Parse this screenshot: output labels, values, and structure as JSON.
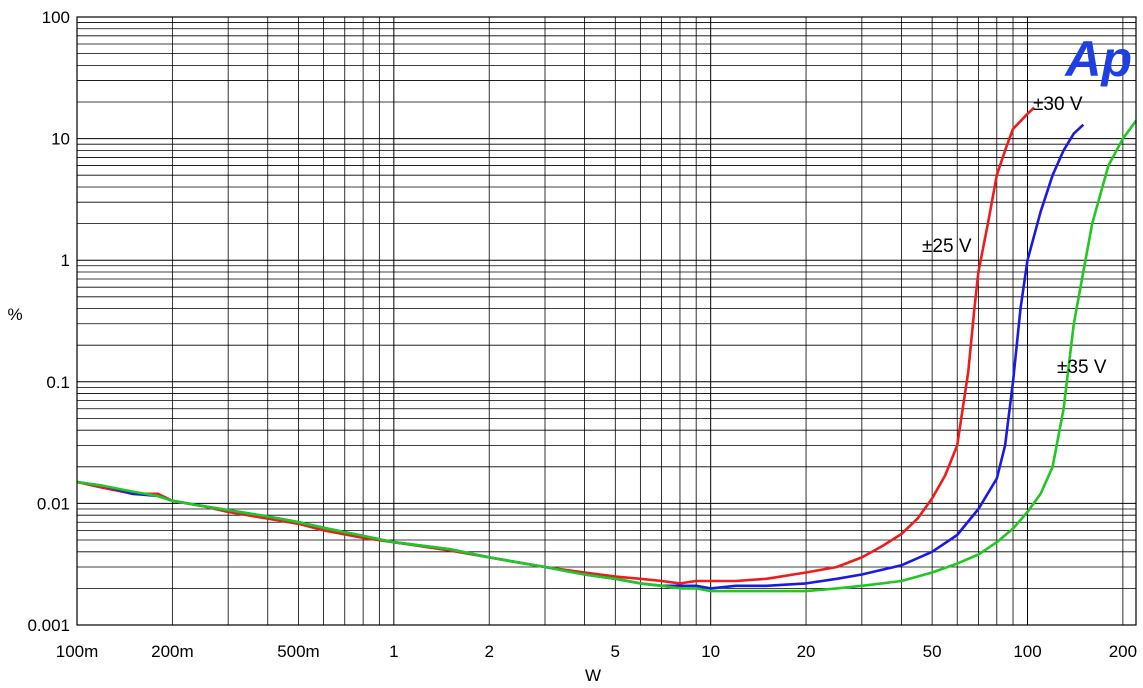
{
  "chart_data": {
    "type": "line",
    "xlabel": "W",
    "ylabel": "%",
    "x_scale": "log",
    "y_scale": "log",
    "xlim": [
      0.1,
      220
    ],
    "ylim": [
      0.001,
      100
    ],
    "grid": true,
    "x_ticks": [
      {
        "value": 0.1,
        "label": "100m"
      },
      {
        "value": 0.2,
        "label": "200m"
      },
      {
        "value": 0.5,
        "label": "500m"
      },
      {
        "value": 1,
        "label": "1"
      },
      {
        "value": 2,
        "label": "2"
      },
      {
        "value": 5,
        "label": "5"
      },
      {
        "value": 10,
        "label": "10"
      },
      {
        "value": 20,
        "label": "20"
      },
      {
        "value": 50,
        "label": "50"
      },
      {
        "value": 100,
        "label": "100"
      },
      {
        "value": 200,
        "label": "200"
      }
    ],
    "y_ticks": [
      {
        "value": 0.001,
        "label": "0.001"
      },
      {
        "value": 0.01,
        "label": "0.01"
      },
      {
        "value": 0.1,
        "label": "0.1"
      },
      {
        "value": 1,
        "label": "1"
      },
      {
        "value": 10,
        "label": "10"
      },
      {
        "value": 100,
        "label": "100"
      }
    ],
    "logo_text": "Ap",
    "series": [
      {
        "name": "±25 V",
        "color": "#ee1c1c",
        "label_at": [
          0.75,
          1.05
        ],
        "points": [
          [
            0.1,
            0.015
          ],
          [
            0.12,
            0.0135
          ],
          [
            0.15,
            0.012
          ],
          [
            0.18,
            0.012
          ],
          [
            0.2,
            0.0105
          ],
          [
            0.25,
            0.0095
          ],
          [
            0.3,
            0.0085
          ],
          [
            0.4,
            0.0075
          ],
          [
            0.5,
            0.0068
          ],
          [
            0.6,
            0.006
          ],
          [
            0.8,
            0.0052
          ],
          [
            1,
            0.0048
          ],
          [
            1.5,
            0.0041
          ],
          [
            2,
            0.0036
          ],
          [
            3,
            0.003
          ],
          [
            4,
            0.0027
          ],
          [
            5,
            0.0025
          ],
          [
            6,
            0.0024
          ],
          [
            7,
            0.0023
          ],
          [
            8,
            0.0022
          ],
          [
            9,
            0.0023
          ],
          [
            10,
            0.0023
          ],
          [
            12,
            0.0023
          ],
          [
            15,
            0.0024
          ],
          [
            20,
            0.0027
          ],
          [
            25,
            0.003
          ],
          [
            30,
            0.0036
          ],
          [
            35,
            0.0045
          ],
          [
            40,
            0.0056
          ],
          [
            45,
            0.0075
          ],
          [
            50,
            0.011
          ],
          [
            55,
            0.017
          ],
          [
            60,
            0.03
          ],
          [
            65,
            0.12
          ],
          [
            68,
            0.4
          ],
          [
            70,
            0.8
          ],
          [
            75,
            2
          ],
          [
            80,
            5
          ],
          [
            85,
            8
          ],
          [
            90,
            12
          ],
          [
            100,
            16
          ],
          [
            105,
            18
          ]
        ]
      },
      {
        "name": "±30 V",
        "color": "#1a1ae6",
        "label_at": [
          1.0,
          1.08
        ],
        "points": [
          [
            0.1,
            0.015
          ],
          [
            0.12,
            0.014
          ],
          [
            0.15,
            0.012
          ],
          [
            0.18,
            0.0115
          ],
          [
            0.2,
            0.0105
          ],
          [
            0.25,
            0.0095
          ],
          [
            0.3,
            0.0088
          ],
          [
            0.4,
            0.0078
          ],
          [
            0.5,
            0.007
          ],
          [
            0.6,
            0.0063
          ],
          [
            0.8,
            0.0054
          ],
          [
            1,
            0.0048
          ],
          [
            1.5,
            0.0042
          ],
          [
            2,
            0.0036
          ],
          [
            3,
            0.003
          ],
          [
            4,
            0.0026
          ],
          [
            5,
            0.0024
          ],
          [
            6,
            0.0022
          ],
          [
            7,
            0.0021
          ],
          [
            8,
            0.0021
          ],
          [
            9,
            0.0021
          ],
          [
            10,
            0.002
          ],
          [
            12,
            0.0021
          ],
          [
            15,
            0.0021
          ],
          [
            20,
            0.0022
          ],
          [
            25,
            0.0024
          ],
          [
            30,
            0.0026
          ],
          [
            40,
            0.0031
          ],
          [
            50,
            0.004
          ],
          [
            60,
            0.0055
          ],
          [
            70,
            0.009
          ],
          [
            80,
            0.016
          ],
          [
            85,
            0.03
          ],
          [
            90,
            0.1
          ],
          [
            95,
            0.4
          ],
          [
            100,
            1
          ],
          [
            110,
            2.5
          ],
          [
            120,
            5
          ],
          [
            130,
            8
          ],
          [
            140,
            11
          ],
          [
            150,
            13
          ]
        ]
      },
      {
        "name": "±35 V",
        "color": "#22c822",
        "label_at": [
          1.0,
          0.95
        ],
        "points": [
          [
            0.1,
            0.015
          ],
          [
            0.12,
            0.014
          ],
          [
            0.15,
            0.0125
          ],
          [
            0.18,
            0.0115
          ],
          [
            0.2,
            0.0105
          ],
          [
            0.25,
            0.0095
          ],
          [
            0.3,
            0.0088
          ],
          [
            0.4,
            0.0078
          ],
          [
            0.5,
            0.007
          ],
          [
            0.6,
            0.0063
          ],
          [
            0.8,
            0.0054
          ],
          [
            1,
            0.0048
          ],
          [
            1.5,
            0.0042
          ],
          [
            2,
            0.0036
          ],
          [
            3,
            0.003
          ],
          [
            4,
            0.0026
          ],
          [
            5,
            0.0024
          ],
          [
            6,
            0.0022
          ],
          [
            7,
            0.0021
          ],
          [
            8,
            0.002
          ],
          [
            9,
            0.002
          ],
          [
            10,
            0.0019
          ],
          [
            12,
            0.0019
          ],
          [
            15,
            0.0019
          ],
          [
            20,
            0.0019
          ],
          [
            25,
            0.002
          ],
          [
            30,
            0.0021
          ],
          [
            40,
            0.0023
          ],
          [
            50,
            0.0027
          ],
          [
            60,
            0.0032
          ],
          [
            70,
            0.0038
          ],
          [
            80,
            0.0048
          ],
          [
            90,
            0.0062
          ],
          [
            100,
            0.0085
          ],
          [
            110,
            0.012
          ],
          [
            120,
            0.02
          ],
          [
            130,
            0.06
          ],
          [
            140,
            0.3
          ],
          [
            150,
            0.8
          ],
          [
            160,
            2
          ],
          [
            180,
            6
          ],
          [
            200,
            10
          ],
          [
            220,
            14
          ]
        ]
      }
    ]
  }
}
